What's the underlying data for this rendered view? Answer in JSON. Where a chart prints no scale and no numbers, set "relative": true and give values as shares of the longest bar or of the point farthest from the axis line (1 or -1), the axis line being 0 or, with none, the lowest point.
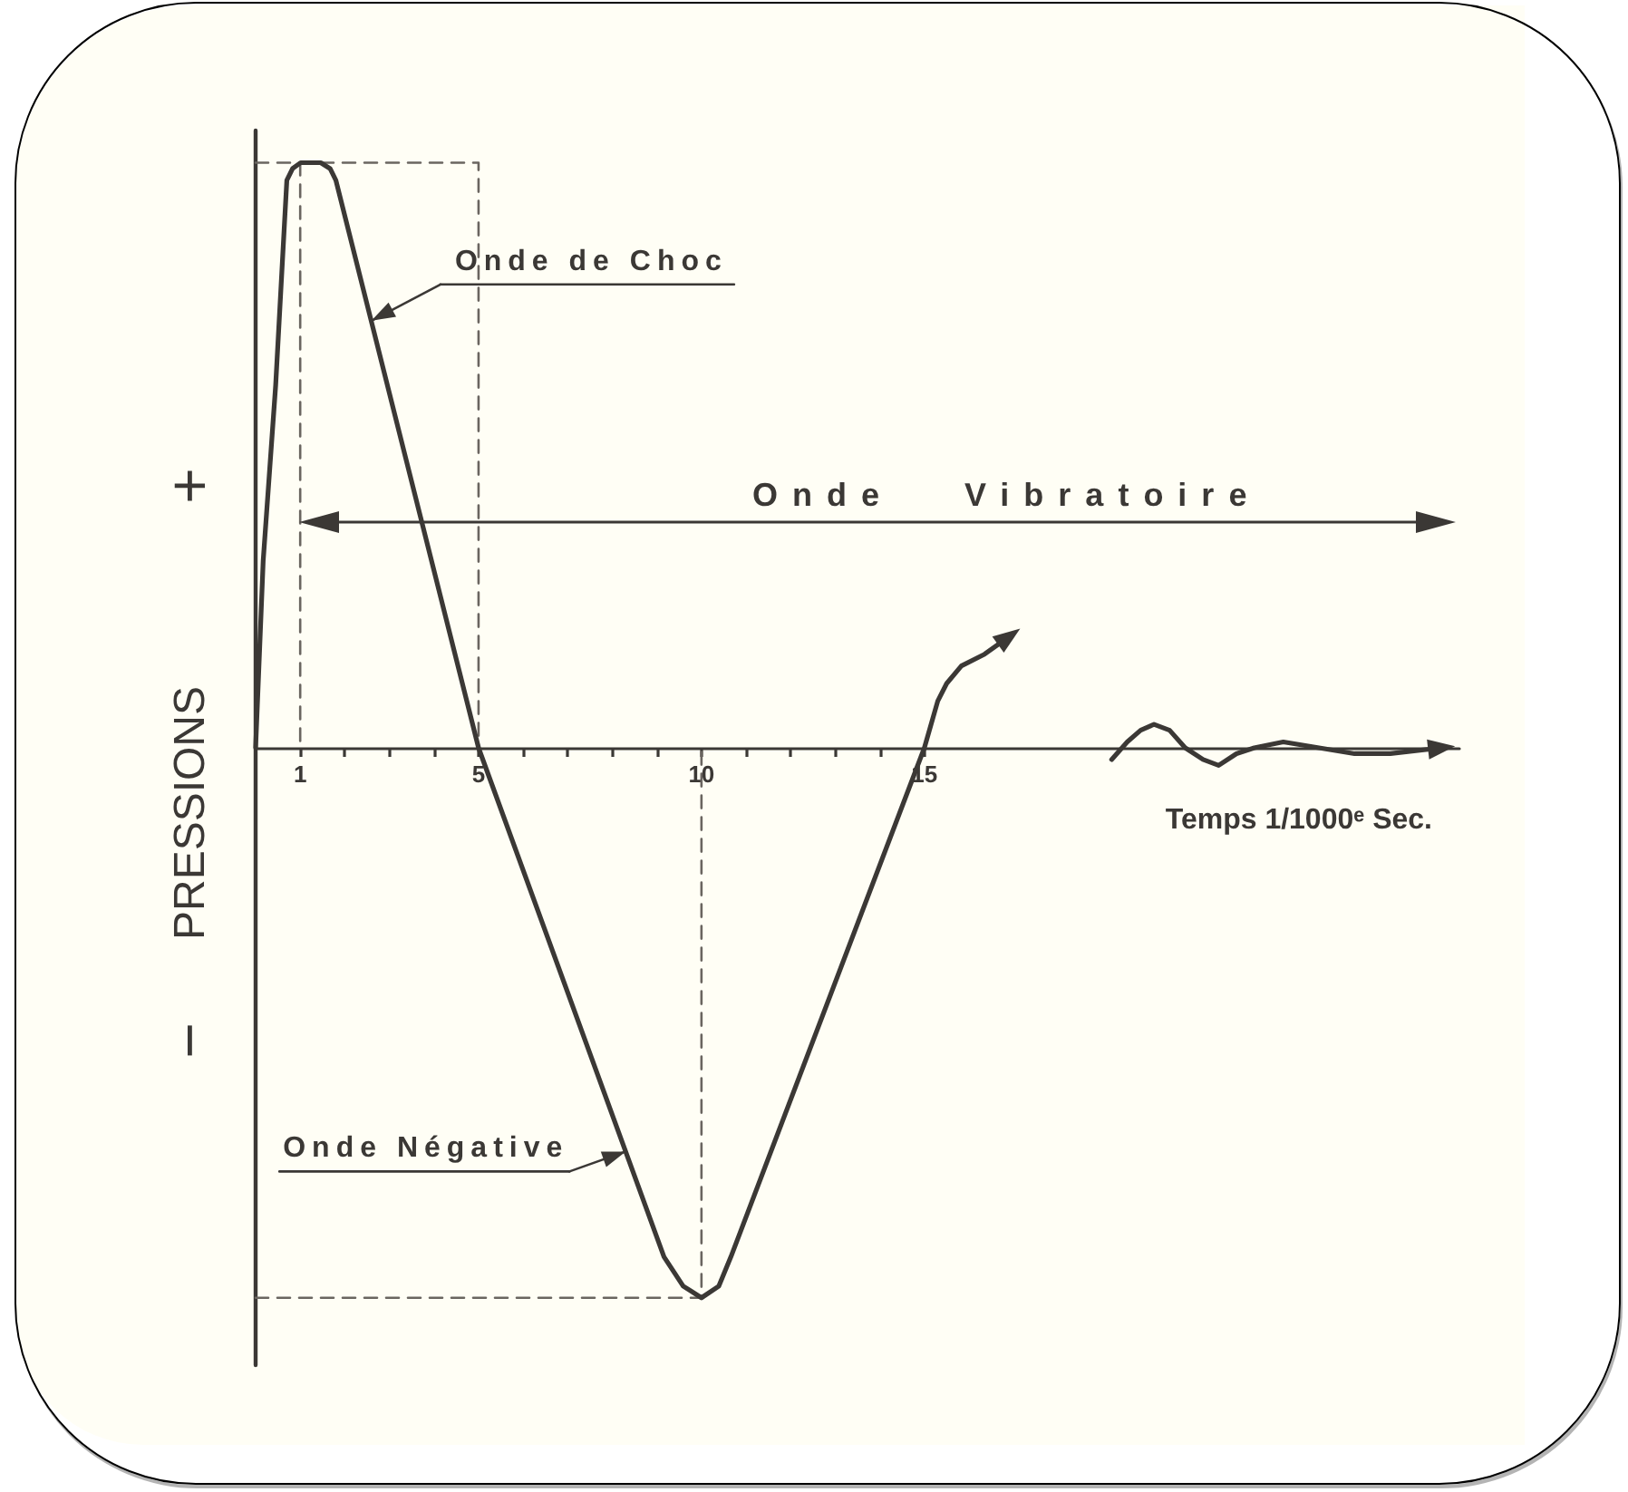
{
  "chart_data": {
    "type": "line",
    "relative": true,
    "xlabel": "Temps 1/1000ᵉ Sec.",
    "ylabel": "PRESSIONS",
    "xlim": [
      0,
      27
    ],
    "xticks": [
      1,
      {
        "value": 2,
        "label": null
      },
      {
        "value": 3,
        "label": null
      },
      {
        "value": 4,
        "label": null
      },
      5,
      {
        "value": 6,
        "label": null
      },
      {
        "value": 7,
        "label": null
      },
      {
        "value": 8,
        "label": null
      },
      {
        "value": 9,
        "label": null
      },
      10,
      {
        "value": 11,
        "label": null
      },
      {
        "value": 12,
        "label": null
      },
      {
        "value": 13,
        "label": null
      },
      {
        "value": 14,
        "label": null
      },
      15
    ],
    "series": [
      {
        "color": "#3b3835",
        "x": [
          0,
          0.17,
          0.45,
          0.7,
          0.83,
          1.01,
          1.46,
          1.67,
          1.8,
          5,
          9.16,
          9.59,
          10,
          10.39,
          10.66,
          15,
          15.3,
          15.5,
          15.83,
          16.35,
          16.9
        ],
        "values": [
          0,
          0.32,
          0.62,
          0.97,
          0.99,
          1,
          1,
          0.99,
          0.97,
          0,
          -0.87,
          -0.92,
          -0.94,
          -0.92,
          -0.87,
          0,
          0.08,
          0.11,
          0.14,
          0.16,
          0.19
        ]
      },
      {
        "color": "#3b3835",
        "x": [
          19.2,
          19.55,
          19.85,
          20.15,
          20.5,
          20.85,
          21.25,
          21.6,
          22,
          22.4,
          23.05,
          23.85,
          24.65,
          25.45,
          26.6
        ],
        "values": [
          -0.02,
          0.01,
          0.03,
          0.04,
          0.03,
          0,
          -0.02,
          -0.03,
          -0.01,
          0,
          0.01,
          0,
          -0.01,
          -0.01,
          0
        ]
      },
      {
        "color": "#6a6560",
        "line_style": "dashed",
        "x": [
          0,
          5,
          5
        ],
        "values": [
          1,
          1,
          0
        ]
      },
      {
        "color": "#6a6560",
        "line_style": "dashed",
        "x": [
          1,
          1
        ],
        "values": [
          1,
          0
        ]
      },
      {
        "color": "#6a6560",
        "line_style": "dashed",
        "x": [
          0,
          10,
          10
        ],
        "values": [
          -0.94,
          -0.94,
          0
        ]
      }
    ],
    "annotations": [
      {
        "text": "Onde de Choc",
        "x": 2.6,
        "y": 0.73
      },
      "+",
      "Onde Vibratoire",
      "−",
      {
        "text": "Onde Négative",
        "x": 8.3,
        "y": -0.69
      }
    ]
  }
}
